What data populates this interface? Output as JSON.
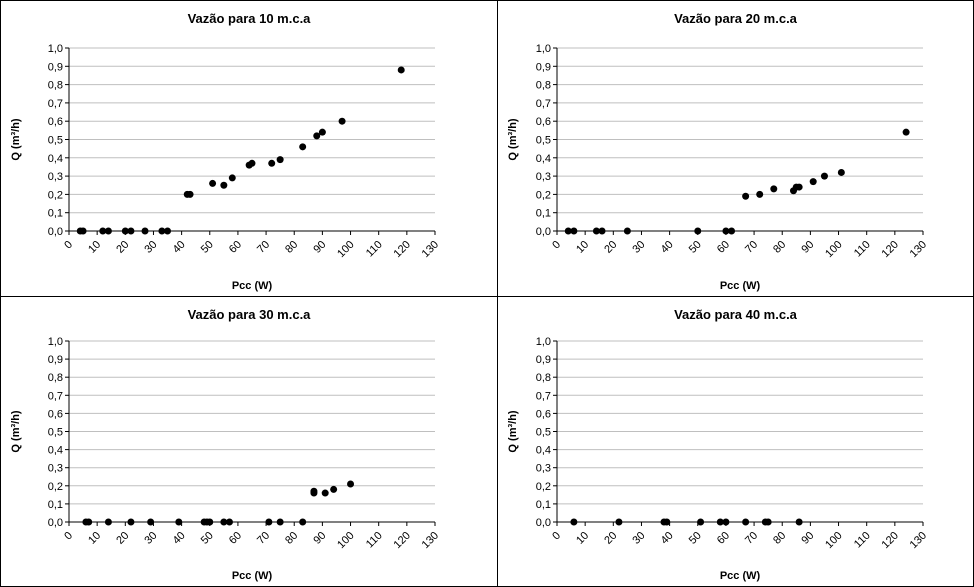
{
  "chart_data": [
    {
      "type": "scatter",
      "title": "Vazão para 10 m.c.a",
      "xlabel": "Pcc (W)",
      "ylabel": "Q (m³/h)",
      "xlim": [
        0,
        130
      ],
      "ylim": [
        0,
        1.0
      ],
      "xticks": [
        "0",
        "10",
        "20",
        "30",
        "40",
        "50",
        "60",
        "70",
        "80",
        "90",
        "100",
        "110",
        "120",
        "130"
      ],
      "yticks": [
        "0,0",
        "0,1",
        "0,2",
        "0,3",
        "0,4",
        "0,5",
        "0,6",
        "0,7",
        "0,8",
        "0,9",
        "1,0"
      ],
      "grid": true,
      "legend": "none",
      "x": [
        4,
        5,
        12,
        14,
        20,
        22,
        27,
        33,
        35,
        42,
        43,
        51,
        55,
        58,
        64,
        65,
        72,
        75,
        83,
        88,
        90,
        97,
        118
      ],
      "y": [
        0.0,
        0.0,
        0.0,
        0.0,
        0.0,
        0.0,
        0.0,
        0.0,
        0.0,
        0.2,
        0.2,
        0.26,
        0.25,
        0.29,
        0.36,
        0.37,
        0.37,
        0.39,
        0.46,
        0.52,
        0.54,
        0.6,
        0.88
      ]
    },
    {
      "type": "scatter",
      "title": "Vazão para 20 m.c.a",
      "xlabel": "Pcc (W)",
      "ylabel": "Q (m³/h)",
      "xlim": [
        0,
        130
      ],
      "ylim": [
        0,
        1.0
      ],
      "xticks": [
        "0",
        "10",
        "20",
        "30",
        "40",
        "50",
        "60",
        "70",
        "80",
        "90",
        "100",
        "110",
        "120",
        "130"
      ],
      "yticks": [
        "0,0",
        "0,1",
        "0,2",
        "0,3",
        "0,4",
        "0,5",
        "0,6",
        "0,7",
        "0,8",
        "0,9",
        "1,0"
      ],
      "grid": true,
      "legend": "none",
      "x": [
        4,
        6,
        14,
        16,
        25,
        50,
        60,
        62,
        67,
        72,
        77,
        84,
        85,
        86,
        91,
        95,
        101,
        124
      ],
      "y": [
        0.0,
        0.0,
        0.0,
        0.0,
        0.0,
        0.0,
        0.0,
        0.0,
        0.19,
        0.2,
        0.23,
        0.22,
        0.24,
        0.24,
        0.27,
        0.3,
        0.32,
        0.54
      ]
    },
    {
      "type": "scatter",
      "title": "Vazão para 30 m.c.a",
      "xlabel": "Pcc (W)",
      "ylabel": "Q (m³/h)",
      "xlim": [
        0,
        130
      ],
      "ylim": [
        0,
        1.0
      ],
      "xticks": [
        "0",
        "10",
        "20",
        "30",
        "40",
        "50",
        "60",
        "70",
        "80",
        "90",
        "100",
        "110",
        "120",
        "130"
      ],
      "yticks": [
        "0,0",
        "0,1",
        "0,2",
        "0,3",
        "0,4",
        "0,5",
        "0,6",
        "0,7",
        "0,8",
        "0,9",
        "1,0"
      ],
      "grid": true,
      "legend": "none",
      "x": [
        6,
        7,
        14,
        22,
        29,
        39,
        48,
        49,
        50,
        55,
        57,
        71,
        75,
        83,
        87,
        87,
        91,
        94,
        100
      ],
      "y": [
        0.0,
        0.0,
        0.0,
        0.0,
        0.0,
        0.0,
        0.0,
        0.0,
        0.0,
        0.0,
        0.0,
        0.0,
        0.0,
        0.0,
        0.16,
        0.17,
        0.16,
        0.18,
        0.21
      ]
    },
    {
      "type": "scatter",
      "title": "Vazão para 40 m.c.a",
      "xlabel": "Pcc (W)",
      "ylabel": "Q (m³/h)",
      "xlim": [
        0,
        130
      ],
      "ylim": [
        0,
        1.0
      ],
      "xticks": [
        "0",
        "10",
        "20",
        "30",
        "40",
        "50",
        "60",
        "70",
        "80",
        "90",
        "100",
        "110",
        "120",
        "130"
      ],
      "yticks": [
        "0,0",
        "0,1",
        "0,2",
        "0,3",
        "0,4",
        "0,5",
        "0,6",
        "0,7",
        "0,8",
        "0,9",
        "1,0"
      ],
      "grid": true,
      "legend": "none",
      "x": [
        6,
        22,
        38,
        39,
        51,
        58,
        60,
        67,
        74,
        75,
        86
      ],
      "y": [
        0.0,
        0.0,
        0.0,
        0.0,
        0.0,
        0.0,
        0.0,
        0.0,
        0.0,
        0.0,
        0.0
      ]
    }
  ],
  "colors": {
    "marker": "#000000",
    "gridline": "#bfbfbf",
    "axis": "#000000",
    "border": "#000000",
    "background": "#ffffff"
  }
}
